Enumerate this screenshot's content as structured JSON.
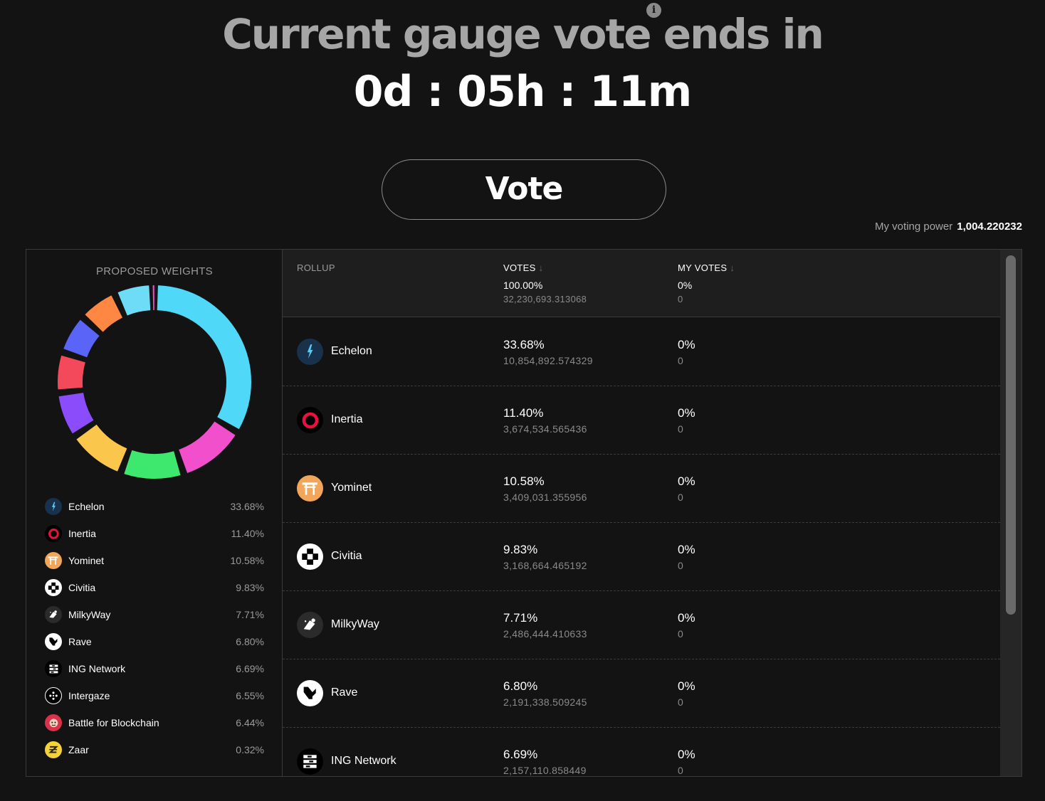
{
  "header": {
    "title": "Current gauge vote ends in",
    "countdown": "0d : 05h : 11m",
    "info_icon": "i"
  },
  "vote_button": {
    "label": "Vote"
  },
  "voting_power": {
    "label": "My voting power",
    "value": "1,004.220232"
  },
  "weights_panel": {
    "title": "PROPOSED WEIGHTS"
  },
  "table": {
    "headers": {
      "rollup": "ROLLUP",
      "votes": "VOTES",
      "my_votes": "MY VOTES",
      "sort_arrow": "↓"
    },
    "totals": {
      "votes_pct": "100.00%",
      "votes_raw": "32,230,693.313068",
      "my_pct": "0%",
      "my_raw": "0"
    }
  },
  "rollups": [
    {
      "name": "Echelon",
      "pct": "33.68%",
      "share": 33.68,
      "votes": "10,854,892.574329",
      "my_pct": "0%",
      "my_votes": "0",
      "color": "#4fd8f8",
      "icon": "echelon-icon"
    },
    {
      "name": "Inertia",
      "pct": "11.40%",
      "share": 11.4,
      "votes": "3,674,534.565436",
      "my_pct": "0%",
      "my_votes": "0",
      "color": "#f24fcc",
      "icon": "inertia-icon"
    },
    {
      "name": "Yominet",
      "pct": "10.58%",
      "share": 10.58,
      "votes": "3,409,031.355956",
      "my_pct": "0%",
      "my_votes": "0",
      "color": "#3ee86f",
      "icon": "yominet-icon"
    },
    {
      "name": "Civitia",
      "pct": "9.83%",
      "share": 9.83,
      "votes": "3,168,664.465192",
      "my_pct": "0%",
      "my_votes": "0",
      "color": "#fbc64c",
      "icon": "civitia-icon"
    },
    {
      "name": "MilkyWay",
      "pct": "7.71%",
      "share": 7.71,
      "votes": "2,486,444.410633",
      "my_pct": "0%",
      "my_votes": "0",
      "color": "#8b4dfb",
      "icon": "milkyway-icon"
    },
    {
      "name": "Rave",
      "pct": "6.80%",
      "share": 6.8,
      "votes": "2,191,338.509245",
      "my_pct": "0%",
      "my_votes": "0",
      "color": "#f4495a",
      "icon": "rave-icon"
    },
    {
      "name": "ING Network",
      "pct": "6.69%",
      "share": 6.69,
      "votes": "2,157,110.858449",
      "my_pct": "0%",
      "my_votes": "0",
      "color": "#5a64f7",
      "icon": "ing-network-icon"
    },
    {
      "name": "Intergaze",
      "pct": "6.55%",
      "share": 6.55,
      "color": "#fd8743",
      "icon": "intergaze-icon"
    },
    {
      "name": "Battle for Blockchain",
      "pct": "6.44%",
      "share": 6.44,
      "color": "#6edcf6",
      "icon": "battle-for-blockchain-icon"
    },
    {
      "name": "Zaar",
      "pct": "0.32%",
      "share": 0.32,
      "color": "#f24fcc",
      "icon": "zaar-icon"
    }
  ]
}
